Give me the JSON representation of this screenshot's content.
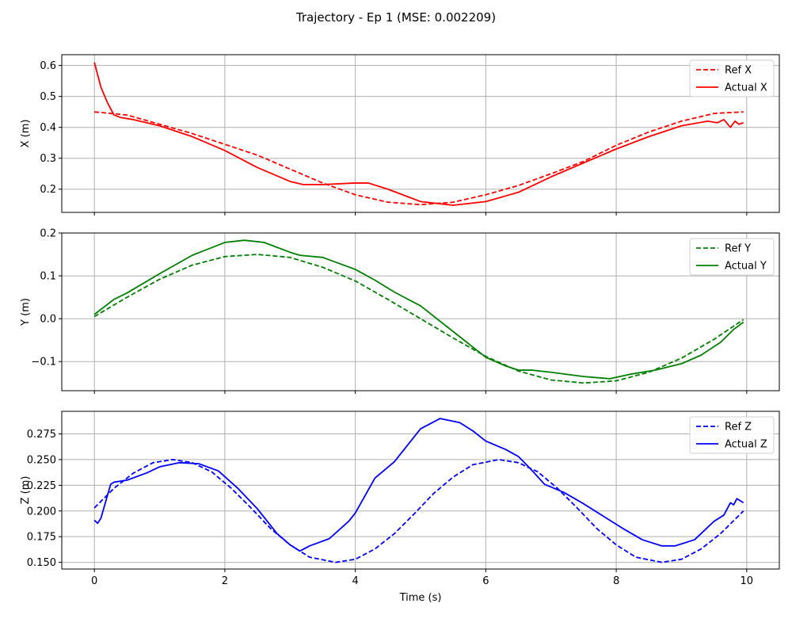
{
  "title": "Trajectory - Ep 1 (MSE: 0.002209)",
  "xlabel": "Time (s)",
  "chart_data": [
    {
      "type": "line",
      "ylabel": "X (m)",
      "xlim": [
        -0.5,
        10.5
      ],
      "ylim": [
        0.125,
        0.635
      ],
      "xticks": [
        0,
        2,
        4,
        6,
        8,
        10
      ],
      "yticks": [
        0.2,
        0.3,
        0.4,
        0.5,
        0.6
      ],
      "ytick_labels": [
        "0.2",
        "0.3",
        "0.4",
        "0.5",
        "0.6"
      ],
      "grid": true,
      "legend": "top-right",
      "series": [
        {
          "name": "Ref X",
          "color": "#ff0000",
          "dash": "dashed",
          "x": [
            0,
            0.5,
            1.0,
            1.5,
            2.0,
            2.5,
            3.0,
            3.5,
            4.0,
            4.5,
            5.0,
            5.5,
            6.0,
            6.5,
            7.0,
            7.5,
            8.0,
            8.5,
            9.0,
            9.5,
            9.95
          ],
          "y": [
            0.45,
            0.44,
            0.41,
            0.38,
            0.345,
            0.31,
            0.265,
            0.22,
            0.182,
            0.158,
            0.15,
            0.158,
            0.182,
            0.212,
            0.25,
            0.29,
            0.342,
            0.385,
            0.42,
            0.445,
            0.45
          ]
        },
        {
          "name": "Actual X",
          "color": "#ff0000",
          "dash": "solid",
          "x": [
            0,
            0.1,
            0.2,
            0.3,
            0.4,
            0.6,
            1.0,
            1.5,
            2.0,
            2.5,
            3.0,
            3.2,
            3.5,
            4.0,
            4.2,
            4.5,
            5.0,
            5.5,
            6.0,
            6.3,
            6.5,
            7.0,
            7.5,
            8.0,
            8.5,
            9.0,
            9.4,
            9.55,
            9.65,
            9.75,
            9.82,
            9.88,
            9.95
          ],
          "y": [
            0.61,
            0.53,
            0.48,
            0.44,
            0.432,
            0.425,
            0.405,
            0.37,
            0.325,
            0.27,
            0.225,
            0.215,
            0.215,
            0.22,
            0.22,
            0.2,
            0.16,
            0.148,
            0.16,
            0.178,
            0.19,
            0.24,
            0.285,
            0.33,
            0.37,
            0.405,
            0.42,
            0.415,
            0.425,
            0.4,
            0.42,
            0.41,
            0.415
          ]
        }
      ]
    },
    {
      "type": "line",
      "ylabel": "Y (m)",
      "xlim": [
        -0.5,
        10.5
      ],
      "ylim": [
        -0.168,
        0.2
      ],
      "xticks": [
        0,
        2,
        4,
        6,
        8,
        10
      ],
      "yticks": [
        -0.1,
        0.0,
        0.1,
        0.2
      ],
      "ytick_labels": [
        "−0.1",
        "0.0",
        "0.1",
        "0.2"
      ],
      "grid": true,
      "legend": "top-right",
      "series": [
        {
          "name": "Ref Y",
          "color": "#008000",
          "dash": "dashed",
          "x": [
            0,
            0.5,
            1.0,
            1.5,
            2.0,
            2.5,
            3.0,
            3.5,
            4.0,
            4.5,
            5.0,
            5.5,
            6.0,
            6.5,
            7.0,
            7.5,
            8.0,
            8.5,
            9.0,
            9.5,
            9.95
          ],
          "y": [
            0.005,
            0.05,
            0.092,
            0.125,
            0.145,
            0.15,
            0.143,
            0.12,
            0.088,
            0.045,
            0.0,
            -0.045,
            -0.088,
            -0.122,
            -0.143,
            -0.15,
            -0.145,
            -0.125,
            -0.092,
            -0.048,
            -0.002
          ]
        },
        {
          "name": "Actual Y",
          "color": "#008000",
          "dash": "solid",
          "x": [
            0,
            0.3,
            0.5,
            1.0,
            1.5,
            2.0,
            2.3,
            2.6,
            3.0,
            3.15,
            3.5,
            4.0,
            4.3,
            4.6,
            5.0,
            5.5,
            6.0,
            6.3,
            6.5,
            6.7,
            7.0,
            7.5,
            7.9,
            8.2,
            8.6,
            9.0,
            9.3,
            9.6,
            9.8,
            9.95
          ],
          "y": [
            0.01,
            0.045,
            0.06,
            0.105,
            0.148,
            0.178,
            0.183,
            0.178,
            0.155,
            0.148,
            0.143,
            0.115,
            0.09,
            0.062,
            0.03,
            -0.03,
            -0.09,
            -0.11,
            -0.12,
            -0.12,
            -0.125,
            -0.135,
            -0.14,
            -0.13,
            -0.12,
            -0.105,
            -0.085,
            -0.055,
            -0.025,
            -0.008
          ]
        }
      ]
    },
    {
      "type": "line",
      "ylabel": "Z (m)",
      "xlim": [
        -0.5,
        10.5
      ],
      "ylim": [
        0.1435,
        0.297
      ],
      "xticks": [
        0,
        2,
        4,
        6,
        8,
        10
      ],
      "yticks": [
        0.15,
        0.175,
        0.2,
        0.225,
        0.25,
        0.275
      ],
      "ytick_labels": [
        "0.150",
        "0.175",
        "0.200",
        "0.225",
        "0.250",
        "0.275"
      ],
      "grid": true,
      "legend": "top-right",
      "series": [
        {
          "name": "Ref Z",
          "color": "#0000ff",
          "dash": "dashed",
          "x": [
            0,
            0.3,
            0.6,
            0.9,
            1.2,
            1.5,
            1.8,
            2.1,
            2.4,
            2.7,
            3.0,
            3.3,
            3.7,
            4.0,
            4.3,
            4.6,
            4.9,
            5.2,
            5.5,
            5.8,
            6.2,
            6.5,
            6.8,
            7.1,
            7.4,
            7.7,
            8.0,
            8.3,
            8.7,
            9.0,
            9.3,
            9.6,
            9.95
          ],
          "y": [
            0.203,
            0.222,
            0.237,
            0.247,
            0.25,
            0.247,
            0.238,
            0.222,
            0.203,
            0.183,
            0.167,
            0.155,
            0.15,
            0.153,
            0.163,
            0.178,
            0.197,
            0.217,
            0.233,
            0.245,
            0.25,
            0.247,
            0.238,
            0.222,
            0.203,
            0.183,
            0.167,
            0.155,
            0.15,
            0.153,
            0.163,
            0.178,
            0.2
          ]
        },
        {
          "name": "Actual Z",
          "color": "#0000ff",
          "dash": "solid",
          "x": [
            0,
            0.05,
            0.1,
            0.2,
            0.25,
            0.3,
            0.4,
            0.5,
            0.8,
            1.0,
            1.3,
            1.6,
            1.9,
            2.2,
            2.5,
            2.8,
            3.0,
            3.15,
            3.3,
            3.6,
            3.9,
            4.0,
            4.3,
            4.6,
            4.8,
            5.0,
            5.3,
            5.6,
            5.8,
            6.0,
            6.3,
            6.5,
            6.7,
            6.9,
            7.2,
            7.5,
            7.8,
            8.1,
            8.4,
            8.7,
            8.9,
            9.2,
            9.5,
            9.65,
            9.75,
            9.8,
            9.85,
            9.95
          ],
          "y": [
            0.191,
            0.188,
            0.193,
            0.215,
            0.226,
            0.228,
            0.229,
            0.23,
            0.237,
            0.243,
            0.247,
            0.246,
            0.239,
            0.222,
            0.202,
            0.178,
            0.167,
            0.161,
            0.166,
            0.173,
            0.19,
            0.198,
            0.232,
            0.248,
            0.264,
            0.28,
            0.29,
            0.286,
            0.278,
            0.268,
            0.26,
            0.253,
            0.24,
            0.226,
            0.218,
            0.207,
            0.195,
            0.183,
            0.172,
            0.166,
            0.166,
            0.172,
            0.19,
            0.196,
            0.208,
            0.206,
            0.212,
            0.208
          ]
        }
      ]
    }
  ]
}
